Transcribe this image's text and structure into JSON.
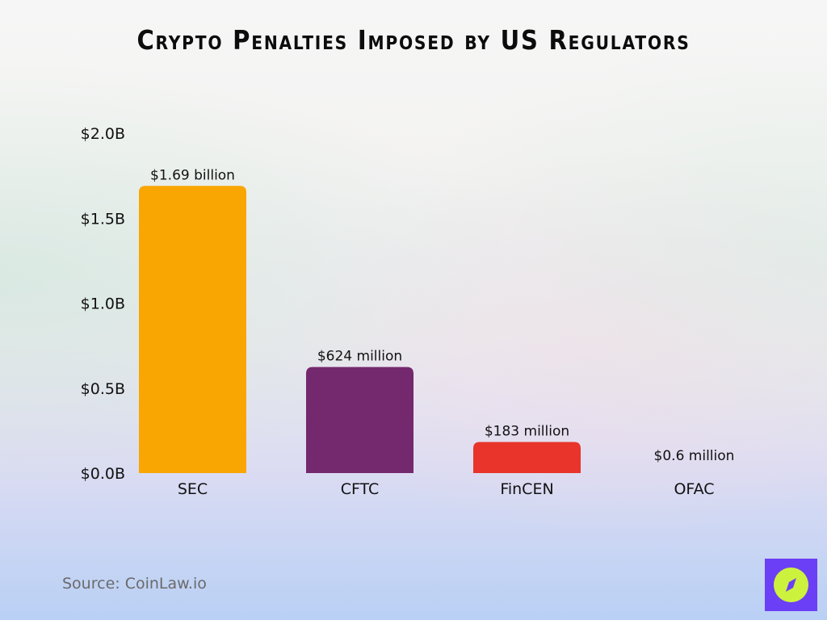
{
  "chart_data": {
    "type": "bar",
    "title": "Crypto Penalties Imposed by US Regulators",
    "categories": [
      "SEC",
      "CFTC",
      "FinCEN",
      "OFAC"
    ],
    "values": [
      1.69,
      0.624,
      0.183,
      0.0006
    ],
    "data_labels": [
      "$1.69 billion",
      "$624 million",
      "$183 million",
      "$0.6 million"
    ],
    "colors": [
      "#f9a602",
      "#74286e",
      "#e8342a",
      "#cccccc"
    ],
    "yunit": "billion USD",
    "ylim": [
      0,
      2.0
    ],
    "yticks": [
      0,
      0.5,
      1.0,
      1.5,
      2.0
    ],
    "ytick_labels": [
      "$0.0B",
      "$0.5B",
      "$1.0B",
      "$1.5B",
      "$2.0B"
    ],
    "xlabel": "",
    "ylabel": "",
    "grid": false,
    "legend": "none"
  },
  "source": "Source: CoinLaw.io",
  "logo": {
    "icon": "compass-icon",
    "bg": "#6b3ff5",
    "fg": "#cdf23e"
  }
}
